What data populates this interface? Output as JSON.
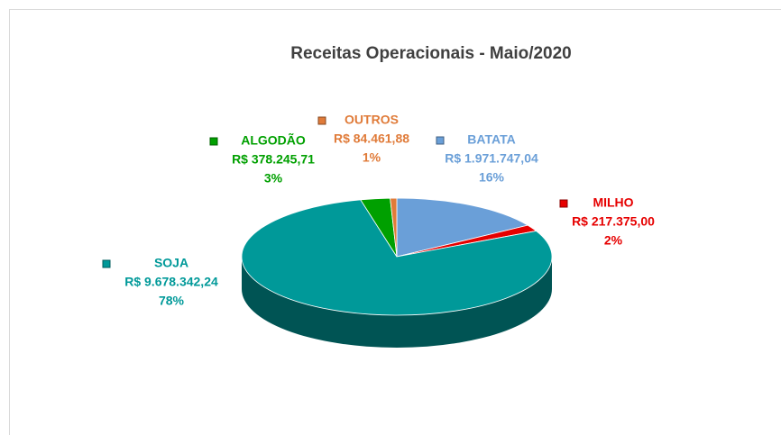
{
  "chart_data": {
    "type": "pie",
    "title": "Receitas Operacionais - Maio/2020",
    "categories": [
      "BATATA",
      "MILHO",
      "SOJA",
      "ALGODÃO",
      "OUTROS"
    ],
    "values": [
      1971747.04,
      217375.0,
      9678342.24,
      378245.71,
      84461.88
    ],
    "value_labels": [
      "R$ 1.971.747,04",
      "R$ 217.375,00",
      "R$ 9.678.342,24",
      "R$ 378.245,71",
      "R$ 84.461,88"
    ],
    "percentages": [
      {
        "value": 16,
        "label": "16%"
      },
      {
        "value": 2,
        "label": "2%"
      },
      {
        "value": 78,
        "label": "78%"
      },
      {
        "value": 3,
        "label": "3%"
      },
      {
        "value": 1,
        "label": "1%"
      }
    ],
    "colors": [
      "#6a9fd8",
      "#e60000",
      "#009999",
      "#00a000",
      "#e07b39"
    ]
  }
}
